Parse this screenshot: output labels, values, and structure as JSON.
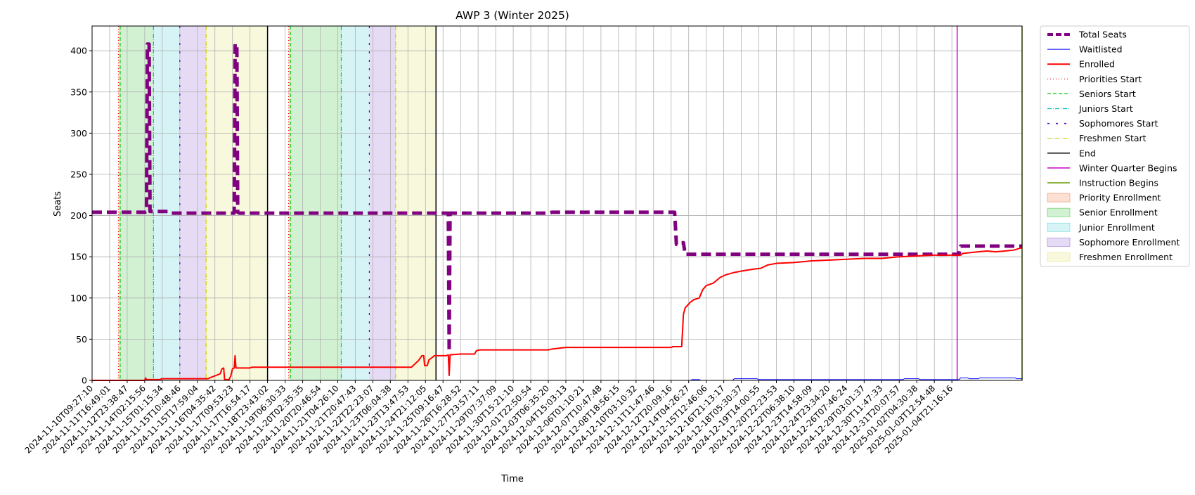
{
  "chart_data": {
    "type": "line",
    "title": "AWP 3 (Winter 2025)",
    "xlabel": "Time",
    "ylabel": "Seats",
    "ylim": [
      0,
      430
    ],
    "xlim": [
      0,
      53
    ],
    "y_ticks": [
      0,
      50,
      100,
      150,
      200,
      250,
      300,
      350,
      400
    ],
    "x_tick_labels": [
      "2024-11-10T09:27:10",
      "2024-11-11T16:49:01",
      "2024-11-12T23:38:47",
      "2024-11-14T02:15:56",
      "2024-11-15T01:15:34",
      "2024-11-15T10:48:46",
      "2024-11-15T17:59:04",
      "2024-11-16T04:35:42",
      "2024-11-17T09:53:23",
      "2024-11-17T16:54:17",
      "2024-11-18T23:43:02",
      "2024-11-19T06:30:33",
      "2024-11-20T02:35:35",
      "2024-11-20T20:46:54",
      "2024-11-21T04:26:10",
      "2024-11-21T20:47:43",
      "2024-11-22T22:23:07",
      "2024-11-23T06:04:38",
      "2024-11-23T13:47:53",
      "2024-11-24T21:12:05",
      "2024-11-25T09:16:47",
      "2024-11-26T16:28:52",
      "2024-11-27T23:57:11",
      "2024-11-29T07:37:09",
      "2024-11-30T15:21:10",
      "2024-12-01T22:50:54",
      "2024-12-03T06:35:20",
      "2024-12-04T15:03:13",
      "2024-12-06T01:10:21",
      "2024-12-07T10:47:48",
      "2024-12-08T18:56:15",
      "2024-12-10T03:10:32",
      "2024-12-11T11:47:46",
      "2024-12-12T20:09:16",
      "2024-12-14T04:26:27",
      "2024-12-15T12:46:06",
      "2024-12-16T21:13:17",
      "2024-12-18T05:30:37",
      "2024-12-19T14:00:55",
      "2024-12-20T22:23:53",
      "2024-12-22T06:38:10",
      "2024-12-23T14:58:09",
      "2024-12-24T23:34:20",
      "2024-12-26T07:46:24",
      "2024-12-29T03:01:37",
      "2024-12-30T11:47:33",
      "2024-12-31T20:07:57",
      "2025-01-02T04:30:38",
      "2025-01-03T12:54:48",
      "2025-01-04T21:16:16"
    ],
    "grid": true,
    "legend_position": "outside-top-right",
    "series": [
      {
        "name": "Total Seats",
        "color": "#800080",
        "style": "dashed-thick",
        "points": [
          [
            0,
            204
          ],
          [
            3,
            204
          ],
          [
            3.1,
            205
          ],
          [
            3.15,
            408
          ],
          [
            3.25,
            408
          ],
          [
            3.3,
            205
          ],
          [
            4.4,
            205
          ],
          [
            4.5,
            203
          ],
          [
            8.1,
            203
          ],
          [
            8.15,
            408
          ],
          [
            8.25,
            408
          ],
          [
            8.3,
            204
          ],
          [
            8.4,
            203
          ],
          [
            20.3,
            203
          ],
          [
            20.35,
            35
          ],
          [
            20.4,
            203
          ],
          [
            26,
            203
          ],
          [
            26.2,
            204
          ],
          [
            33.2,
            204
          ],
          [
            33.3,
            165
          ],
          [
            33.4,
            165
          ],
          [
            33.5,
            167
          ],
          [
            33.7,
            167
          ],
          [
            33.8,
            153
          ],
          [
            49.4,
            153
          ],
          [
            49.5,
            163
          ],
          [
            53,
            163
          ]
        ]
      },
      {
        "name": "Waitlisted",
        "color": "#0000ff",
        "style": "solid-thin",
        "points": [
          [
            0,
            0
          ],
          [
            34.1,
            0
          ],
          [
            34.2,
            1
          ],
          [
            34.6,
            1
          ],
          [
            34.7,
            0
          ],
          [
            36.5,
            0
          ],
          [
            36.6,
            2
          ],
          [
            37.9,
            2
          ],
          [
            38,
            1
          ],
          [
            46.2,
            1
          ],
          [
            46.3,
            2
          ],
          [
            47.1,
            2
          ],
          [
            47.2,
            1
          ],
          [
            49.4,
            1
          ],
          [
            49.5,
            3
          ],
          [
            49.9,
            3
          ],
          [
            50,
            2
          ],
          [
            50.5,
            2
          ],
          [
            50.6,
            3
          ],
          [
            52.6,
            3
          ],
          [
            52.7,
            2
          ],
          [
            53,
            2
          ]
        ]
      },
      {
        "name": "Enrolled",
        "color": "#ff0000",
        "style": "solid",
        "points": [
          [
            0,
            0
          ],
          [
            3,
            0
          ],
          [
            3.05,
            3
          ],
          [
            3.1,
            1
          ],
          [
            3.9,
            1
          ],
          [
            3.95,
            2
          ],
          [
            6.6,
            2
          ],
          [
            6.7,
            3
          ],
          [
            7.3,
            8
          ],
          [
            7.4,
            14
          ],
          [
            7.5,
            15
          ],
          [
            7.55,
            1
          ],
          [
            7.8,
            1
          ],
          [
            7.9,
            5
          ],
          [
            8,
            14
          ],
          [
            8.1,
            15
          ],
          [
            8.15,
            30
          ],
          [
            8.2,
            15
          ],
          [
            9,
            15
          ],
          [
            9.1,
            16
          ],
          [
            18.2,
            16
          ],
          [
            18.3,
            18
          ],
          [
            18.6,
            24
          ],
          [
            18.8,
            30
          ],
          [
            18.9,
            30
          ],
          [
            18.95,
            18
          ],
          [
            19.1,
            18
          ],
          [
            19.2,
            25
          ],
          [
            19.4,
            28
          ],
          [
            19.5,
            30
          ],
          [
            20.2,
            30
          ],
          [
            20.3,
            31
          ],
          [
            20.35,
            6
          ],
          [
            20.4,
            31
          ],
          [
            21,
            32
          ],
          [
            21.8,
            32
          ],
          [
            21.9,
            36
          ],
          [
            22.1,
            37
          ],
          [
            26,
            37
          ],
          [
            26.2,
            38
          ],
          [
            26.6,
            39
          ],
          [
            27,
            40
          ],
          [
            33,
            40
          ],
          [
            33.1,
            41
          ],
          [
            33.6,
            41
          ],
          [
            33.65,
            60
          ],
          [
            33.7,
            80
          ],
          [
            33.8,
            88
          ],
          [
            34.1,
            95
          ],
          [
            34.3,
            98
          ],
          [
            34.6,
            100
          ],
          [
            34.8,
            110
          ],
          [
            35,
            115
          ],
          [
            35.4,
            118
          ],
          [
            35.8,
            125
          ],
          [
            36.1,
            128
          ],
          [
            36.6,
            131
          ],
          [
            37.1,
            133
          ],
          [
            37.7,
            135
          ],
          [
            38.1,
            136
          ],
          [
            38.5,
            140
          ],
          [
            39,
            142
          ],
          [
            40,
            143
          ],
          [
            41,
            145
          ],
          [
            42,
            146
          ],
          [
            43,
            147
          ],
          [
            44,
            148
          ],
          [
            45,
            148
          ],
          [
            46,
            150
          ],
          [
            47,
            151
          ],
          [
            48,
            152
          ],
          [
            49,
            152
          ],
          [
            49.5,
            152
          ],
          [
            49.6,
            154
          ],
          [
            50.5,
            156
          ],
          [
            51,
            157
          ],
          [
            51.5,
            156
          ],
          [
            52,
            157
          ],
          [
            52.5,
            158
          ],
          [
            53,
            161
          ]
        ]
      }
    ],
    "phase_lines": [
      {
        "name": "Priorities Start",
        "color": "#ff0000",
        "style": "dotted",
        "x": [
          1.5,
          11.2
        ]
      },
      {
        "name": "Seniors Start",
        "color": "#00cc00",
        "style": "dashed",
        "x": [
          1.6,
          11.3
        ]
      },
      {
        "name": "Juniors Start",
        "color": "#00bfbf",
        "style": "dashdot",
        "x": [
          3.5,
          14.2
        ]
      },
      {
        "name": "Sophomores Start",
        "color": "#5500cc",
        "style": "loose-dashed",
        "x": [
          5,
          15.8
        ]
      },
      {
        "name": "Freshmen Start",
        "color": "#cccc00",
        "style": "dashdot",
        "x": [
          6.5,
          17.3
        ]
      },
      {
        "name": "End",
        "color": "#000000",
        "style": "solid",
        "x": [
          10,
          19.6
        ]
      },
      {
        "name": "Winter Quarter Begins",
        "color": "#cc00cc",
        "style": "solid",
        "x": [
          49.3
        ]
      },
      {
        "name": "Instruction Begins",
        "color": "#669900",
        "style": "solid",
        "x": [
          53
        ]
      }
    ],
    "phase_spans": [
      {
        "name": "Priority Enrollment",
        "color": "#f4a582",
        "ranges": [
          [
            1.5,
            1.6
          ],
          [
            11.2,
            11.3
          ]
        ]
      },
      {
        "name": "Senior Enrollment",
        "color": "#7fd67f",
        "ranges": [
          [
            1.6,
            3.5
          ],
          [
            11.3,
            14.2
          ]
        ]
      },
      {
        "name": "Junior Enrollment",
        "color": "#8ae0e6",
        "ranges": [
          [
            3.5,
            5
          ],
          [
            14.2,
            15.8
          ]
        ]
      },
      {
        "name": "Sophomore Enrollment",
        "color": "#b697e0",
        "ranges": [
          [
            5,
            6.5
          ],
          [
            15.8,
            17.3
          ]
        ]
      },
      {
        "name": "Freshmen Enrollment",
        "color": "#ecee9c",
        "ranges": [
          [
            6.5,
            10
          ],
          [
            17.3,
            19.6
          ]
        ]
      }
    ],
    "legend": [
      {
        "label": "Total Seats",
        "kind": "line",
        "color": "#800080",
        "dash": "8,4",
        "width": 4
      },
      {
        "label": "Waitlisted",
        "kind": "line",
        "color": "#0000ff",
        "dash": "",
        "width": 1
      },
      {
        "label": "Enrolled",
        "kind": "line",
        "color": "#ff0000",
        "dash": "",
        "width": 2
      },
      {
        "label": "Priorities Start",
        "kind": "line",
        "color": "#ff0000",
        "dash": "1,3",
        "width": 1.2
      },
      {
        "label": "Seniors Start",
        "kind": "line",
        "color": "#00cc00",
        "dash": "5,3",
        "width": 1.2
      },
      {
        "label": "Juniors Start",
        "kind": "line",
        "color": "#00bfbf",
        "dash": "6,2,1,2",
        "width": 1.2
      },
      {
        "label": "Sophomores Start",
        "kind": "line",
        "color": "#5500cc",
        "dash": "3,9",
        "width": 1.5
      },
      {
        "label": "Freshmen Start",
        "kind": "line",
        "color": "#cccc00",
        "dash": "6,2,1,2",
        "width": 1.2
      },
      {
        "label": "End",
        "kind": "line",
        "color": "#000000",
        "dash": "",
        "width": 1.5
      },
      {
        "label": "Winter Quarter Begins",
        "kind": "line",
        "color": "#cc00cc",
        "dash": "",
        "width": 1.5
      },
      {
        "label": "Instruction Begins",
        "kind": "line",
        "color": "#669900",
        "dash": "",
        "width": 1.5
      },
      {
        "label": "Priority Enrollment",
        "kind": "patch",
        "color": "#f4a582"
      },
      {
        "label": "Senior Enrollment",
        "kind": "patch",
        "color": "#7fd67f"
      },
      {
        "label": "Junior Enrollment",
        "kind": "patch",
        "color": "#8ae0e6"
      },
      {
        "label": "Sophomore Enrollment",
        "kind": "patch",
        "color": "#b697e0"
      },
      {
        "label": "Freshmen Enrollment",
        "kind": "patch",
        "color": "#ecee9c"
      }
    ]
  }
}
